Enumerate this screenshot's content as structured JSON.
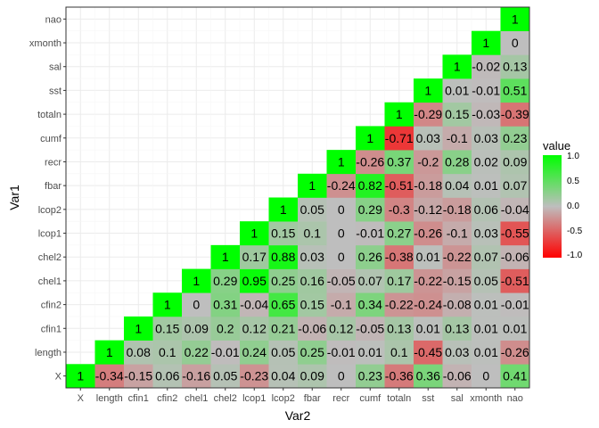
{
  "chart_data": {
    "type": "heatmap",
    "title": "",
    "xlabel": "Var2",
    "ylabel": "Var1",
    "variables": [
      "X",
      "length",
      "cfin1",
      "cfin2",
      "chel1",
      "chel2",
      "lcop1",
      "lcop2",
      "fbar",
      "recr",
      "cumf",
      "totaln",
      "sst",
      "sal",
      "xmonth",
      "nao"
    ],
    "rows": [
      {
        "var": "X",
        "values": [
          "1",
          "-0.34",
          "-0.15",
          "0.06",
          "-0.16",
          "0.05",
          "-0.23",
          "0.04",
          "0.09",
          "0",
          "0.23",
          "-0.36",
          "0.36",
          "-0.06",
          "0",
          "0.41"
        ]
      },
      {
        "var": "length",
        "values": [
          "1",
          "0.08",
          "0.1",
          "0.22",
          "-0.01",
          "0.24",
          "0.05",
          "0.25",
          "-0.01",
          "0.01",
          "0.1",
          "-0.45",
          "0.03",
          "0.01",
          "-0.26"
        ]
      },
      {
        "var": "cfin1",
        "values": [
          "1",
          "0.15",
          "0.09",
          "0.2",
          "0.12",
          "0.21",
          "-0.06",
          "0.12",
          "-0.05",
          "0.13",
          "0.01",
          "0.13",
          "0.01",
          "0.01"
        ]
      },
      {
        "var": "cfin2",
        "values": [
          "1",
          "0",
          "0.31",
          "-0.04",
          "0.65",
          "0.15",
          "-0.1",
          "0.34",
          "-0.22",
          "-0.24",
          "-0.08",
          "0.01",
          "-0.01"
        ]
      },
      {
        "var": "chel1",
        "values": [
          "1",
          "0.29",
          "0.95",
          "0.25",
          "0.16",
          "-0.05",
          "0.07",
          "0.17",
          "-0.22",
          "-0.15",
          "0.05",
          "-0.51"
        ]
      },
      {
        "var": "chel2",
        "values": [
          "1",
          "0.17",
          "0.88",
          "0.03",
          "0",
          "0.26",
          "-0.38",
          "0.01",
          "-0.22",
          "0.07",
          "-0.06"
        ]
      },
      {
        "var": "lcop1",
        "values": [
          "1",
          "0.15",
          "0.1",
          "0",
          "-0.01",
          "0.27",
          "-0.26",
          "-0.1",
          "0.03",
          "-0.55"
        ]
      },
      {
        "var": "lcop2",
        "values": [
          "1",
          "0.05",
          "0",
          "0.29",
          "-0.3",
          "-0.12",
          "-0.18",
          "0.06",
          "-0.04"
        ]
      },
      {
        "var": "fbar",
        "values": [
          "1",
          "-0.24",
          "0.82",
          "-0.51",
          "-0.18",
          "0.04",
          "0.01",
          "0.07"
        ]
      },
      {
        "var": "recr",
        "values": [
          "1",
          "-0.26",
          "0.37",
          "-0.2",
          "0.28",
          "0.02",
          "0.09"
        ]
      },
      {
        "var": "cumf",
        "values": [
          "1",
          "-0.71",
          "0.03",
          "-0.1",
          "0.03",
          "0.23"
        ]
      },
      {
        "var": "totaln",
        "values": [
          "1",
          "-0.29",
          "0.15",
          "-0.03",
          "-0.39"
        ]
      },
      {
        "var": "sst",
        "values": [
          "1",
          "0.01",
          "-0.01",
          "0.51"
        ]
      },
      {
        "var": "sal",
        "values": [
          "1",
          "-0.02",
          "0.13"
        ]
      },
      {
        "var": "xmonth",
        "values": [
          "1",
          "0"
        ]
      },
      {
        "var": "nao",
        "values": [
          "1"
        ]
      }
    ],
    "legend": {
      "title": "value",
      "placement": "right",
      "ticks": [
        "1.0",
        "0.5",
        "0.0",
        "-0.5",
        "-1.0"
      ],
      "range": [
        -1,
        1
      ]
    },
    "colors": {
      "high": "#00ff00",
      "mid": "#bebebe",
      "low": "#ff0000",
      "panel": "#ffffff",
      "grid": "#ebebeb",
      "border": "#333333"
    },
    "grid": true
  }
}
